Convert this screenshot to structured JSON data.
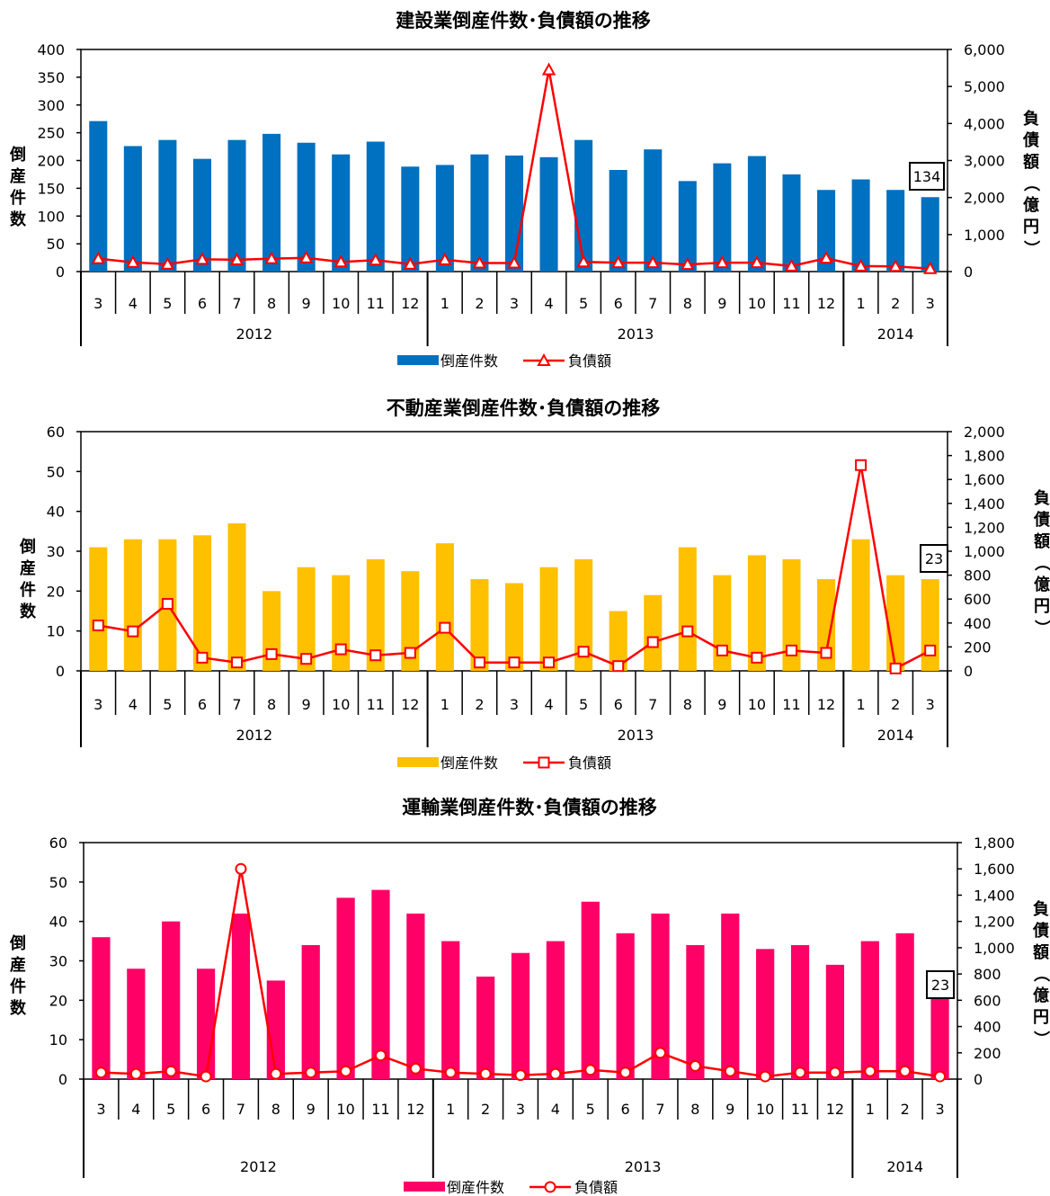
{
  "chart_data": [
    {
      "type": "bar",
      "title": "建設業倒産件数･負債額の推移",
      "ylabel": "倒産件数",
      "y2label": "負債額（億円）",
      "ylim": [
        0,
        400
      ],
      "y2lim": [
        0,
        6000
      ],
      "yticks": [
        "0",
        "50",
        "100",
        "150",
        "200",
        "250",
        "300",
        "350",
        "400"
      ],
      "y2ticks": [
        "0",
        "1,000",
        "2,000",
        "3,000",
        "4,000",
        "5,000",
        "6,000"
      ],
      "categories": [
        "3",
        "4",
        "5",
        "6",
        "7",
        "8",
        "9",
        "10",
        "11",
        "12",
        "1",
        "2",
        "3",
        "4",
        "5",
        "6",
        "7",
        "8",
        "9",
        "10",
        "11",
        "12",
        "1",
        "2",
        "3"
      ],
      "years": [
        {
          "label": "2012",
          "start": 0,
          "end": 10
        },
        {
          "label": "2013",
          "start": 10,
          "end": 22
        },
        {
          "label": "2014",
          "start": 22,
          "end": 25
        }
      ],
      "series": [
        {
          "name": "倒産件数",
          "kind": "bar",
          "axis": "left",
          "color": "#0070C0",
          "values": [
            271,
            226,
            237,
            203,
            237,
            248,
            232,
            211,
            234,
            189,
            192,
            211,
            209,
            206,
            237,
            183,
            220,
            163,
            195,
            208,
            175,
            147,
            166,
            147,
            134
          ]
        },
        {
          "name": "負債額",
          "kind": "line",
          "axis": "right",
          "marker": "triangle",
          "color": "#FF0000",
          "values": [
            350,
            250,
            200,
            330,
            320,
            350,
            370,
            260,
            310,
            200,
            320,
            230,
            230,
            5450,
            260,
            240,
            240,
            190,
            240,
            240,
            150,
            360,
            150,
            140,
            80
          ]
        }
      ],
      "callout": "134",
      "legend_position": "bottom"
    },
    {
      "type": "bar",
      "title": "不動産業倒産件数･負債額の推移",
      "ylabel": "倒産件数",
      "y2label": "負債額（億円）",
      "ylim": [
        0,
        60
      ],
      "y2lim": [
        0,
        2000
      ],
      "yticks": [
        "0",
        "10",
        "20",
        "30",
        "40",
        "50",
        "60"
      ],
      "y2ticks": [
        "0",
        "200",
        "400",
        "600",
        "800",
        "1,000",
        "1,200",
        "1,400",
        "1,600",
        "1,800",
        "2,000"
      ],
      "categories": [
        "3",
        "4",
        "5",
        "6",
        "7",
        "8",
        "9",
        "10",
        "11",
        "12",
        "1",
        "2",
        "3",
        "4",
        "5",
        "6",
        "7",
        "8",
        "9",
        "10",
        "11",
        "12",
        "1",
        "2",
        "3"
      ],
      "years": [
        {
          "label": "2012",
          "start": 0,
          "end": 10
        },
        {
          "label": "2013",
          "start": 10,
          "end": 22
        },
        {
          "label": "2014",
          "start": 22,
          "end": 25
        }
      ],
      "series": [
        {
          "name": "倒産件数",
          "kind": "bar",
          "axis": "left",
          "color": "#FFC000",
          "values": [
            31,
            33,
            33,
            34,
            37,
            20,
            26,
            24,
            28,
            25,
            32,
            23,
            22,
            26,
            28,
            15,
            19,
            31,
            24,
            29,
            28,
            23,
            33,
            24,
            23
          ]
        },
        {
          "name": "負債額",
          "kind": "line",
          "axis": "right",
          "marker": "square",
          "color": "#FF0000",
          "values": [
            380,
            330,
            560,
            110,
            70,
            140,
            100,
            180,
            130,
            150,
            360,
            70,
            70,
            70,
            160,
            40,
            240,
            330,
            170,
            110,
            170,
            150,
            1720,
            20,
            170
          ]
        }
      ],
      "callout": "23",
      "legend_position": "bottom"
    },
    {
      "type": "bar",
      "title": "運輸業倒産件数･負債額の推移",
      "ylabel": "倒産件数",
      "y2label": "負債額（億円）",
      "ylim": [
        0,
        60
      ],
      "y2lim": [
        0,
        1800
      ],
      "yticks": [
        "0",
        "10",
        "20",
        "30",
        "40",
        "50",
        "60"
      ],
      "y2ticks": [
        "0",
        "200",
        "400",
        "600",
        "800",
        "1,000",
        "1,200",
        "1,400",
        "1,600",
        "1,800"
      ],
      "categories": [
        "3",
        "4",
        "5",
        "6",
        "7",
        "8",
        "9",
        "10",
        "11",
        "12",
        "1",
        "2",
        "3",
        "4",
        "5",
        "6",
        "7",
        "8",
        "9",
        "10",
        "11",
        "12",
        "1",
        "2",
        "3"
      ],
      "years": [
        {
          "label": "2012",
          "start": 0,
          "end": 10
        },
        {
          "label": "2013",
          "start": 10,
          "end": 22
        },
        {
          "label": "2014",
          "start": 22,
          "end": 25
        }
      ],
      "series": [
        {
          "name": "倒産件数",
          "kind": "bar",
          "axis": "left",
          "color": "#FF0066",
          "values": [
            36,
            28,
            40,
            28,
            42,
            25,
            34,
            46,
            48,
            42,
            35,
            26,
            32,
            35,
            45,
            37,
            42,
            34,
            42,
            33,
            34,
            29,
            35,
            37,
            23
          ]
        },
        {
          "name": "負債額",
          "kind": "line",
          "axis": "right",
          "marker": "circle",
          "color": "#FF0000",
          "values": [
            50,
            40,
            60,
            20,
            1600,
            40,
            50,
            60,
            180,
            80,
            50,
            40,
            30,
            40,
            70,
            50,
            200,
            100,
            60,
            20,
            50,
            50,
            60,
            60,
            20
          ]
        }
      ],
      "callout": "23",
      "legend_position": "bottom"
    }
  ]
}
